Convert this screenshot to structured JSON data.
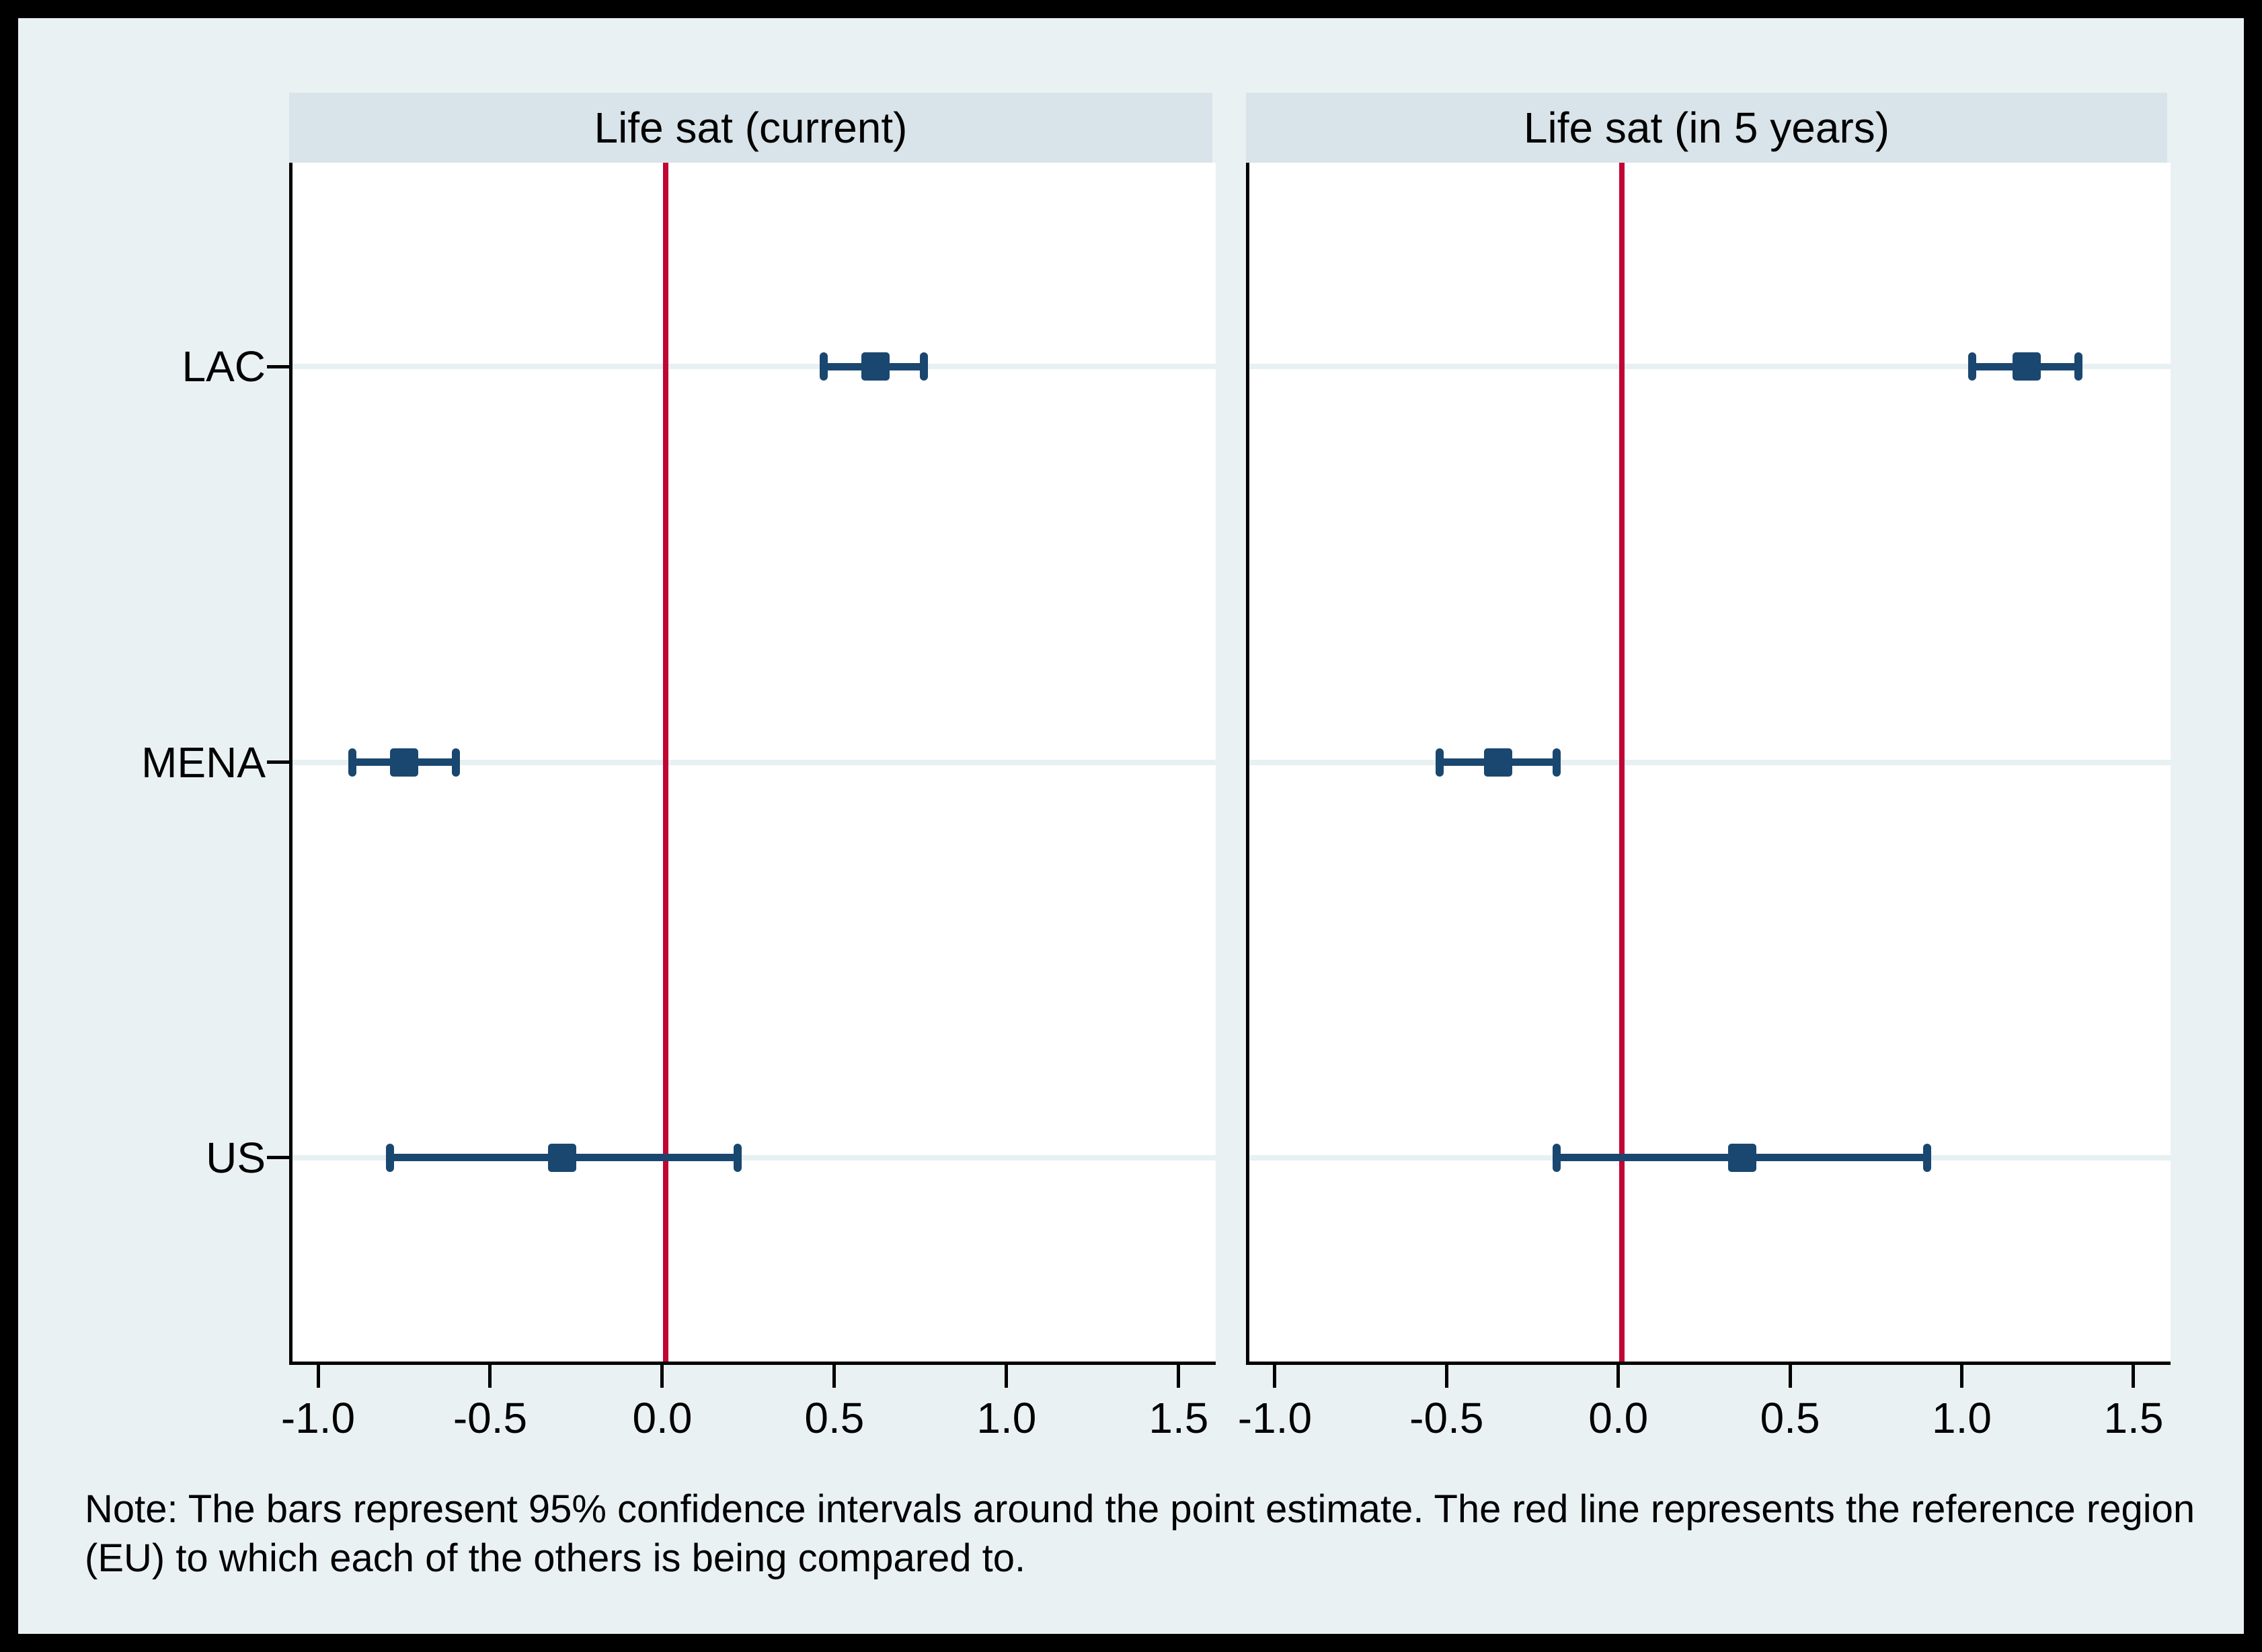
{
  "chart_data": {
    "type": "scatter",
    "subtype": "coefficient-plot-with-95pct-confidence-intervals",
    "categories": [
      "LAC",
      "MENA",
      "US"
    ],
    "x_tick_labels": [
      "-1.0",
      "-0.5",
      "0.0",
      "0.5",
      "1.0",
      "1.5"
    ],
    "x_ticks": [
      -1.0,
      -0.5,
      0.0,
      0.5,
      1.0,
      1.5
    ],
    "xlim": [
      -1.084,
      1.598
    ],
    "reference_line_x": 0.0,
    "reference_region": "EU",
    "grid": "horizontal-category-gridlines",
    "legend": "none",
    "panels": [
      {
        "title": "Life sat (current)",
        "series": [
          {
            "category": "LAC",
            "estimate": 0.61,
            "ci_low": 0.46,
            "ci_high": 0.75
          },
          {
            "category": "MENA",
            "estimate": -0.76,
            "ci_low": -0.91,
            "ci_high": -0.61
          },
          {
            "category": "US",
            "estimate": -0.3,
            "ci_low": -0.8,
            "ci_high": 0.21
          }
        ]
      },
      {
        "title": "Life sat (in 5 years)",
        "series": [
          {
            "category": "LAC",
            "estimate": 1.18,
            "ci_low": 1.02,
            "ci_high": 1.33
          },
          {
            "category": "MENA",
            "estimate": -0.36,
            "ci_low": -0.53,
            "ci_high": -0.19
          },
          {
            "category": "US",
            "estimate": 0.35,
            "ci_low": -0.19,
            "ci_high": 0.89
          }
        ]
      }
    ],
    "colors": {
      "marker": "#1a476f",
      "reference_line": "#c10534",
      "outer_background": "#eaf1f2",
      "title_band": "#d9e4ea",
      "plot_background": "#ffffff",
      "gridline": "#e7f0f2",
      "axis": "#000000"
    },
    "note": "Note: The bars represent 95% confidence intervals around the point estimate. The red line represents the reference region (EU) to which each of the others is being compared to."
  }
}
